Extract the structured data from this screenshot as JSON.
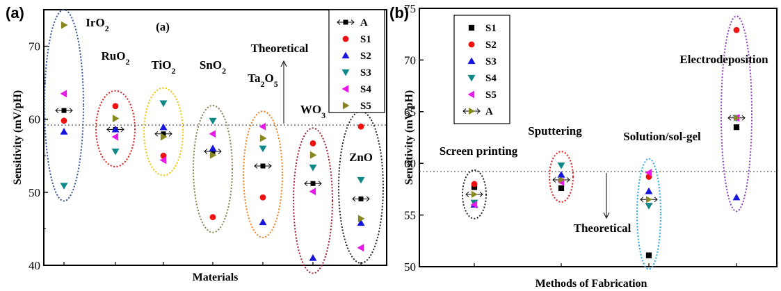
{
  "chart_data": [
    {
      "type": "scatter",
      "panel_letter": "(a)",
      "inner_label": "(a)",
      "xlabel": "Materials",
      "ylabel": "Sensitivity (mV/pH)",
      "ylim": [
        40,
        75
      ],
      "yticks": [
        40,
        50,
        60,
        70
      ],
      "grid": false,
      "legend_position": "top-right",
      "theoretical": {
        "value": 59.2,
        "label": "Theoretical"
      },
      "categories": [
        "IrO2",
        "RuO2",
        "TiO2",
        "SnO2",
        "Ta2O5",
        "WO3",
        "ZnO"
      ],
      "category_labels": [
        {
          "base": "IrO",
          "sub": "2"
        },
        {
          "base": "RuO",
          "sub": "2"
        },
        {
          "base": "TiO",
          "sub": "2"
        },
        {
          "base": "SnO",
          "sub": "2"
        },
        {
          "base": "Ta",
          "sub": "2",
          "base2": "O",
          "sub2": "5"
        },
        {
          "base": "WO",
          "sub": "3"
        },
        {
          "base": "ZnO",
          "sub": ""
        }
      ],
      "ellipse_colors": [
        "#2f5597",
        "#e31a1c",
        "#f2c300",
        "#8b7d4a",
        "#f07f1c",
        "#a11b2a",
        "#222222"
      ],
      "series": [
        {
          "name": "A",
          "marker": "arrow-square",
          "color": "#000000",
          "values": [
            61.2,
            58.6,
            58.0,
            55.6,
            53.6,
            51.2,
            49.1
          ]
        },
        {
          "name": "S1",
          "marker": "circle",
          "color": "#ee1111",
          "values": [
            59.8,
            61.8,
            55.0,
            46.6,
            49.3,
            56.7,
            59.0
          ]
        },
        {
          "name": "S2",
          "marker": "triangle-up",
          "color": "#1515dd",
          "values": [
            58.3,
            58.6,
            58.9,
            56.0,
            45.9,
            41.0,
            45.8
          ]
        },
        {
          "name": "S3",
          "marker": "triangle-down",
          "color": "#118888",
          "values": [
            50.9,
            55.6,
            62.2,
            59.8,
            56.0,
            53.4,
            51.7
          ]
        },
        {
          "name": "S4",
          "marker": "triangle-left",
          "color": "#e619e6",
          "values": [
            63.5,
            57.6,
            54.4,
            58.0,
            59.0,
            50.1,
            42.4
          ]
        },
        {
          "name": "S5",
          "marker": "triangle-right",
          "color": "#888822",
          "values": [
            72.9,
            60.1,
            57.6,
            55.1,
            57.4,
            55.1,
            46.4
          ]
        }
      ]
    },
    {
      "type": "scatter",
      "panel_letter": "(b)",
      "xlabel": "Methods of Fabrication",
      "ylabel": "Sensitivity (mV/pH)",
      "ylim": [
        50,
        75
      ],
      "yticks": [
        50,
        55,
        60,
        65,
        70,
        75
      ],
      "grid": false,
      "legend_position": "top-left",
      "theoretical": {
        "value": 59.2,
        "label": "Theoretical"
      },
      "categories": [
        "Screen printing",
        "Sputtering",
        "Solution/sol-gel",
        "Electrodeposition"
      ],
      "ellipse_colors": [
        "#222222",
        "#e31a1c",
        "#28a8e0",
        "#8e3cb8"
      ],
      "series": [
        {
          "name": "S1",
          "marker": "square",
          "color": "#000000",
          "values": [
            57.7,
            57.6,
            51.1,
            63.5
          ]
        },
        {
          "name": "S2",
          "marker": "circle",
          "color": "#ee1111",
          "values": [
            58.0,
            58.3,
            58.7,
            72.9
          ]
        },
        {
          "name": "S3",
          "marker": "triangle-up",
          "color": "#1515dd",
          "values": [
            56.0,
            58.9,
            57.3,
            56.7
          ]
        },
        {
          "name": "S4",
          "marker": "triangle-down",
          "color": "#118888",
          "values": [
            56.2,
            59.8,
            55.9,
            64.4
          ]
        },
        {
          "name": "S5",
          "marker": "triangle-left",
          "color": "#e619e6",
          "values": [
            56.0,
            58.2,
            59.1,
            64.4
          ]
        },
        {
          "name": "A",
          "marker": "arrow-tri-right",
          "color": "#888822",
          "values": [
            57.0,
            58.4,
            56.5,
            64.4
          ]
        }
      ]
    }
  ]
}
